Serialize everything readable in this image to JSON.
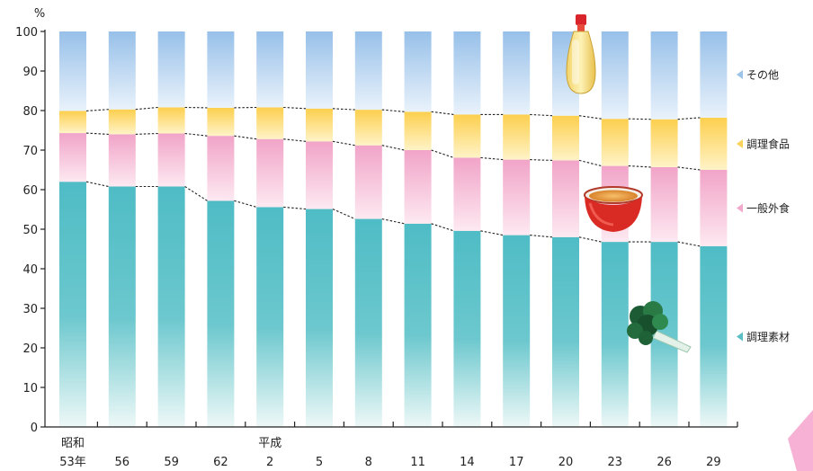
{
  "chart_data": {
    "type": "bar",
    "stacked": true,
    "percent_normalized": true,
    "unit_label": "%",
    "categories": [
      {
        "era": "昭和",
        "label": "53年"
      },
      {
        "era": "",
        "label": "56"
      },
      {
        "era": "",
        "label": "59"
      },
      {
        "era": "",
        "label": "62"
      },
      {
        "era": "平成",
        "label": "2"
      },
      {
        "era": "",
        "label": "5"
      },
      {
        "era": "",
        "label": "8"
      },
      {
        "era": "",
        "label": "11"
      },
      {
        "era": "",
        "label": "14"
      },
      {
        "era": "",
        "label": "17"
      },
      {
        "era": "",
        "label": "20"
      },
      {
        "era": "",
        "label": "23"
      },
      {
        "era": "",
        "label": "26"
      },
      {
        "era": "",
        "label": "29"
      }
    ],
    "series": [
      {
        "name": "調理素材",
        "color": "#5bbfc7",
        "values": [
          62.0,
          60.8,
          60.8,
          57.2,
          55.6,
          55.1,
          52.6,
          51.4,
          49.6,
          48.5,
          48.0,
          46.8,
          46.8,
          45.7
        ]
      },
      {
        "name": "一般外食",
        "color": "#f3a9cb",
        "values": [
          12.3,
          13.2,
          13.4,
          16.4,
          17.2,
          17.1,
          18.6,
          18.6,
          18.5,
          19.1,
          19.4,
          19.2,
          18.9,
          19.3
        ]
      },
      {
        "name": "調理食品",
        "color": "#fbd35a",
        "values": [
          5.6,
          6.3,
          6.6,
          7.1,
          8.0,
          8.3,
          9.0,
          9.7,
          10.9,
          11.4,
          11.3,
          11.9,
          12.1,
          13.2
        ]
      },
      {
        "name": "その他",
        "color": "#9cc3e8",
        "values": [
          20.1,
          19.7,
          19.2,
          19.3,
          19.2,
          19.5,
          19.8,
          20.3,
          21.0,
          21.0,
          21.3,
          22.1,
          22.2,
          21.8
        ]
      }
    ],
    "ylim": [
      0,
      100
    ],
    "yticks": [
      0,
      10,
      20,
      30,
      40,
      50,
      60,
      70,
      80,
      90,
      100
    ],
    "legend_placement": "right",
    "grid": false
  }
}
